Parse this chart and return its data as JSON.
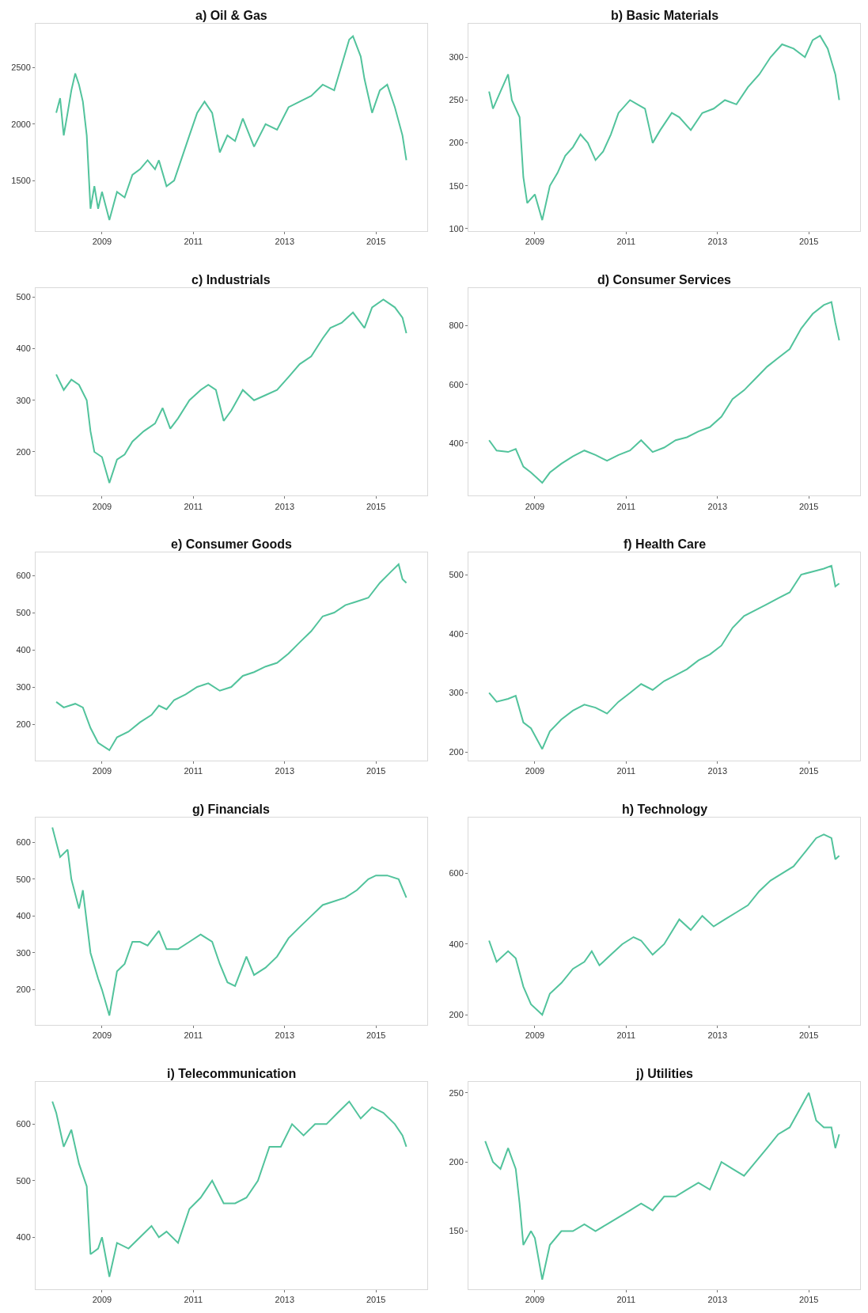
{
  "chart_data": [
    {
      "type": "line",
      "title": "a) Oil & Gas",
      "xlim": [
        "2007-07-20",
        "2016-02-15"
      ],
      "xticks": [
        "2009",
        "2011",
        "2013",
        "2015"
      ],
      "ylim": [
        1050,
        2890
      ],
      "yticks": [
        1500,
        2000,
        2500
      ],
      "series": [
        {
          "color": "#52c39c",
          "x": [
            "2008-01",
            "2008-02",
            "2008-03",
            "2008-04",
            "2008-05",
            "2008-06",
            "2008-07",
            "2008-08",
            "2008-09",
            "2008-10",
            "2008-11",
            "2008-12",
            "2009-01",
            "2009-03",
            "2009-05",
            "2009-07",
            "2009-09",
            "2009-11",
            "2010-01",
            "2010-03",
            "2010-04",
            "2010-06",
            "2010-08",
            "2010-10",
            "2010-12",
            "2011-02",
            "2011-04",
            "2011-06",
            "2011-08",
            "2011-10",
            "2011-12",
            "2012-02",
            "2012-05",
            "2012-08",
            "2012-11",
            "2013-02",
            "2013-05",
            "2013-08",
            "2013-11",
            "2014-02",
            "2014-06",
            "2014-07",
            "2014-09",
            "2014-10",
            "2014-12",
            "2015-02",
            "2015-04",
            "2015-06",
            "2015-08",
            "2015-09"
          ],
          "values": [
            2100,
            2230,
            1900,
            2100,
            2300,
            2450,
            2350,
            2200,
            1900,
            1250,
            1450,
            1250,
            1400,
            1150,
            1400,
            1350,
            1550,
            1600,
            1680,
            1600,
            1680,
            1450,
            1500,
            1700,
            1900,
            2100,
            2200,
            2100,
            1750,
            1900,
            1850,
            2050,
            1800,
            2000,
            1950,
            2150,
            2200,
            2250,
            2350,
            2300,
            2750,
            2780,
            2600,
            2400,
            2100,
            2300,
            2350,
            2150,
            1900,
            1680
          ]
        }
      ]
    },
    {
      "type": "line",
      "title": "b) Basic Materials",
      "xlim": [
        "2007-07-20",
        "2016-02-15"
      ],
      "xticks": [
        "2009",
        "2011",
        "2013",
        "2015"
      ],
      "ylim": [
        97,
        339
      ],
      "yticks": [
        100,
        150,
        200,
        250,
        300
      ],
      "series": [
        {
          "color": "#52c39c",
          "x": [
            "2008-01",
            "2008-02",
            "2008-04",
            "2008-06",
            "2008-07",
            "2008-09",
            "2008-10",
            "2008-11",
            "2009-01",
            "2009-03",
            "2009-05",
            "2009-07",
            "2009-09",
            "2009-11",
            "2010-01",
            "2010-03",
            "2010-05",
            "2010-07",
            "2010-09",
            "2010-11",
            "2011-02",
            "2011-04",
            "2011-06",
            "2011-08",
            "2011-10",
            "2012-01",
            "2012-03",
            "2012-06",
            "2012-09",
            "2012-12",
            "2013-03",
            "2013-06",
            "2013-09",
            "2013-12",
            "2014-03",
            "2014-06",
            "2014-09",
            "2014-12",
            "2015-02",
            "2015-04",
            "2015-06",
            "2015-08",
            "2015-09"
          ],
          "values": [
            260,
            240,
            260,
            280,
            250,
            230,
            160,
            130,
            140,
            110,
            150,
            165,
            185,
            195,
            210,
            200,
            180,
            190,
            210,
            235,
            250,
            245,
            240,
            200,
            215,
            235,
            230,
            215,
            235,
            240,
            250,
            245,
            265,
            280,
            300,
            315,
            310,
            300,
            320,
            325,
            310,
            280,
            250
          ]
        }
      ]
    },
    {
      "type": "line",
      "title": "c) Industrials",
      "xlim": [
        "2007-07-20",
        "2016-02-15"
      ],
      "xticks": [
        "2009",
        "2011",
        "2013",
        "2015"
      ],
      "ylim": [
        115,
        517
      ],
      "yticks": [
        200,
        300,
        400,
        500
      ],
      "series": [
        {
          "color": "#52c39c",
          "x": [
            "2008-01",
            "2008-03",
            "2008-05",
            "2008-07",
            "2008-09",
            "2008-10",
            "2008-11",
            "2009-01",
            "2009-03",
            "2009-05",
            "2009-07",
            "2009-09",
            "2009-12",
            "2010-03",
            "2010-05",
            "2010-07",
            "2010-09",
            "2010-12",
            "2011-03",
            "2011-05",
            "2011-07",
            "2011-09",
            "2011-11",
            "2012-02",
            "2012-05",
            "2012-08",
            "2012-11",
            "2013-02",
            "2013-05",
            "2013-08",
            "2013-11",
            "2014-01",
            "2014-04",
            "2014-07",
            "2014-10",
            "2014-12",
            "2015-03",
            "2015-06",
            "2015-08",
            "2015-09"
          ],
          "values": [
            350,
            320,
            340,
            330,
            300,
            240,
            200,
            190,
            140,
            185,
            195,
            220,
            240,
            255,
            285,
            245,
            265,
            300,
            320,
            330,
            320,
            260,
            280,
            320,
            300,
            310,
            320,
            345,
            370,
            385,
            420,
            440,
            450,
            470,
            440,
            480,
            495,
            480,
            460,
            430
          ]
        }
      ]
    },
    {
      "type": "line",
      "title": "d) Consumer Services",
      "xlim": [
        "2007-07-20",
        "2016-02-15"
      ],
      "xticks": [
        "2009",
        "2011",
        "2013",
        "2015"
      ],
      "ylim": [
        221,
        927
      ],
      "yticks": [
        400,
        600,
        800
      ],
      "series": [
        {
          "color": "#52c39c",
          "x": [
            "2008-01",
            "2008-03",
            "2008-06",
            "2008-08",
            "2008-10",
            "2008-12",
            "2009-03",
            "2009-05",
            "2009-08",
            "2009-11",
            "2010-02",
            "2010-05",
            "2010-08",
            "2010-11",
            "2011-02",
            "2011-05",
            "2011-08",
            "2011-11",
            "2012-02",
            "2012-05",
            "2012-08",
            "2012-11",
            "2013-02",
            "2013-05",
            "2013-08",
            "2013-11",
            "2014-02",
            "2014-05",
            "2014-08",
            "2014-11",
            "2015-02",
            "2015-05",
            "2015-07",
            "2015-08",
            "2015-09"
          ],
          "values": [
            410,
            375,
            370,
            380,
            320,
            300,
            265,
            300,
            330,
            355,
            375,
            360,
            340,
            360,
            375,
            410,
            370,
            385,
            410,
            420,
            440,
            455,
            490,
            550,
            580,
            620,
            660,
            690,
            720,
            790,
            840,
            870,
            880,
            810,
            750
          ]
        }
      ]
    },
    {
      "type": "line",
      "title": "e) Consumer Goods",
      "xlim": [
        "2007-07-20",
        "2016-02-15"
      ],
      "xticks": [
        "2009",
        "2011",
        "2013",
        "2015"
      ],
      "ylim": [
        103,
        661
      ],
      "yticks": [
        200,
        300,
        400,
        500,
        600
      ],
      "series": [
        {
          "color": "#52c39c",
          "x": [
            "2008-01",
            "2008-03",
            "2008-06",
            "2008-08",
            "2008-10",
            "2008-12",
            "2009-03",
            "2009-05",
            "2009-08",
            "2009-11",
            "2010-02",
            "2010-04",
            "2010-06",
            "2010-08",
            "2010-11",
            "2011-02",
            "2011-05",
            "2011-08",
            "2011-11",
            "2012-02",
            "2012-05",
            "2012-08",
            "2012-11",
            "2013-02",
            "2013-05",
            "2013-08",
            "2013-11",
            "2014-02",
            "2014-05",
            "2014-08",
            "2014-11",
            "2015-02",
            "2015-05",
            "2015-07",
            "2015-08",
            "2015-09"
          ],
          "values": [
            260,
            245,
            255,
            245,
            190,
            150,
            130,
            165,
            180,
            205,
            225,
            250,
            240,
            265,
            280,
            300,
            310,
            290,
            300,
            330,
            340,
            355,
            365,
            390,
            420,
            450,
            490,
            500,
            520,
            530,
            540,
            580,
            610,
            630,
            590,
            580
          ]
        }
      ]
    },
    {
      "type": "line",
      "title": "f) Health Care",
      "xlim": [
        "2007-07-20",
        "2016-02-15"
      ],
      "xticks": [
        "2009",
        "2011",
        "2013",
        "2015"
      ],
      "ylim": [
        186,
        537
      ],
      "yticks": [
        200,
        300,
        400,
        500
      ],
      "series": [
        {
          "color": "#52c39c",
          "x": [
            "2008-01",
            "2008-03",
            "2008-06",
            "2008-08",
            "2008-10",
            "2008-12",
            "2009-03",
            "2009-05",
            "2009-08",
            "2009-11",
            "2010-02",
            "2010-05",
            "2010-08",
            "2010-11",
            "2011-02",
            "2011-05",
            "2011-08",
            "2011-11",
            "2012-02",
            "2012-05",
            "2012-08",
            "2012-11",
            "2013-02",
            "2013-05",
            "2013-08",
            "2013-11",
            "2014-02",
            "2014-05",
            "2014-08",
            "2014-11",
            "2015-02",
            "2015-05",
            "2015-07",
            "2015-08",
            "2015-09"
          ],
          "values": [
            300,
            285,
            290,
            295,
            250,
            240,
            205,
            235,
            255,
            270,
            280,
            275,
            265,
            285,
            300,
            315,
            305,
            320,
            330,
            340,
            355,
            365,
            380,
            410,
            430,
            440,
            450,
            460,
            470,
            500,
            505,
            510,
            515,
            480,
            485
          ]
        }
      ]
    },
    {
      "type": "line",
      "title": "g) Financials",
      "xlim": [
        "2007-07-20",
        "2016-02-15"
      ],
      "xticks": [
        "2009",
        "2011",
        "2013",
        "2015"
      ],
      "ylim": [
        105,
        668
      ],
      "yticks": [
        200,
        300,
        400,
        500,
        600
      ],
      "series": [
        {
          "color": "#52c39c",
          "x": [
            "2007-12",
            "2008-01",
            "2008-02",
            "2008-04",
            "2008-05",
            "2008-07",
            "2008-08",
            "2008-10",
            "2008-12",
            "2009-01",
            "2009-03",
            "2009-05",
            "2009-07",
            "2009-09",
            "2009-11",
            "2010-01",
            "2010-04",
            "2010-06",
            "2010-09",
            "2010-12",
            "2011-03",
            "2011-06",
            "2011-08",
            "2011-10",
            "2011-12",
            "2012-03",
            "2012-05",
            "2012-08",
            "2012-11",
            "2013-02",
            "2013-05",
            "2013-08",
            "2013-11",
            "2014-02",
            "2014-05",
            "2014-08",
            "2014-11",
            "2015-01",
            "2015-04",
            "2015-07",
            "2015-09"
          ],
          "values": [
            640,
            600,
            560,
            580,
            500,
            420,
            470,
            300,
            230,
            200,
            130,
            250,
            270,
            330,
            330,
            320,
            360,
            310,
            310,
            330,
            350,
            330,
            270,
            220,
            210,
            290,
            240,
            260,
            290,
            340,
            370,
            400,
            430,
            440,
            450,
            470,
            500,
            510,
            510,
            500,
            450
          ]
        }
      ]
    },
    {
      "type": "line",
      "title": "h) Technology",
      "xlim": [
        "2007-07-20",
        "2016-02-15"
      ],
      "xticks": [
        "2009",
        "2011",
        "2013",
        "2015"
      ],
      "ylim": [
        172,
        759
      ],
      "yticks": [
        200,
        400,
        600
      ],
      "series": [
        {
          "color": "#52c39c",
          "x": [
            "2008-01",
            "2008-03",
            "2008-06",
            "2008-08",
            "2008-10",
            "2008-12",
            "2009-03",
            "2009-05",
            "2009-08",
            "2009-11",
            "2010-02",
            "2010-04",
            "2010-06",
            "2010-09",
            "2010-12",
            "2011-03",
            "2011-05",
            "2011-08",
            "2011-11",
            "2012-03",
            "2012-06",
            "2012-09",
            "2012-12",
            "2013-03",
            "2013-06",
            "2013-09",
            "2013-12",
            "2014-03",
            "2014-06",
            "2014-09",
            "2014-12",
            "2015-03",
            "2015-05",
            "2015-07",
            "2015-08",
            "2015-09"
          ],
          "values": [
            410,
            350,
            380,
            360,
            280,
            230,
            200,
            260,
            290,
            330,
            350,
            380,
            340,
            370,
            400,
            420,
            410,
            370,
            400,
            470,
            440,
            480,
            450,
            470,
            490,
            510,
            550,
            580,
            600,
            620,
            660,
            700,
            710,
            700,
            640,
            650
          ]
        }
      ]
    },
    {
      "type": "line",
      "title": "i) Telecommunication",
      "xlim": [
        "2007-07-20",
        "2016-02-15"
      ],
      "xticks": [
        "2009",
        "2011",
        "2013",
        "2015"
      ],
      "ylim": [
        308,
        675
      ],
      "yticks": [
        400,
        500,
        600
      ],
      "series": [
        {
          "color": "#52c39c",
          "x": [
            "2007-12",
            "2008-01",
            "2008-03",
            "2008-05",
            "2008-07",
            "2008-09",
            "2008-10",
            "2008-12",
            "2009-01",
            "2009-03",
            "2009-05",
            "2009-08",
            "2009-11",
            "2010-02",
            "2010-04",
            "2010-06",
            "2010-09",
            "2010-12",
            "2011-03",
            "2011-06",
            "2011-09",
            "2011-12",
            "2012-03",
            "2012-06",
            "2012-09",
            "2012-12",
            "2013-03",
            "2013-06",
            "2013-09",
            "2013-12",
            "2014-03",
            "2014-06",
            "2014-09",
            "2014-12",
            "2015-03",
            "2015-06",
            "2015-08",
            "2015-09"
          ],
          "values": [
            640,
            620,
            560,
            590,
            530,
            490,
            370,
            380,
            400,
            330,
            390,
            380,
            400,
            420,
            400,
            410,
            390,
            450,
            470,
            500,
            460,
            460,
            470,
            500,
            560,
            560,
            600,
            580,
            600,
            600,
            620,
            640,
            610,
            630,
            620,
            600,
            580,
            560
          ]
        }
      ]
    },
    {
      "type": "line",
      "title": "j) Utilities",
      "xlim": [
        "2007-07-20",
        "2016-02-15"
      ],
      "xticks": [
        "2009",
        "2011",
        "2013",
        "2015"
      ],
      "ylim": [
        108,
        258
      ],
      "yticks": [
        150,
        200,
        250
      ],
      "series": [
        {
          "color": "#52c39c",
          "x": [
            "2007-12",
            "2008-02",
            "2008-04",
            "2008-06",
            "2008-08",
            "2008-09",
            "2008-10",
            "2008-12",
            "2009-01",
            "2009-03",
            "2009-05",
            "2009-08",
            "2009-11",
            "2010-02",
            "2010-05",
            "2010-08",
            "2010-11",
            "2011-02",
            "2011-05",
            "2011-08",
            "2011-11",
            "2012-02",
            "2012-05",
            "2012-08",
            "2012-11",
            "2013-02",
            "2013-05",
            "2013-08",
            "2013-11",
            "2014-02",
            "2014-05",
            "2014-08",
            "2014-11",
            "2015-01",
            "2015-03",
            "2015-05",
            "2015-07",
            "2015-08",
            "2015-09"
          ],
          "values": [
            215,
            200,
            195,
            210,
            195,
            170,
            140,
            150,
            145,
            115,
            140,
            150,
            150,
            155,
            150,
            155,
            160,
            165,
            170,
            165,
            175,
            175,
            180,
            185,
            180,
            200,
            195,
            190,
            200,
            210,
            220,
            225,
            240,
            250,
            230,
            225,
            225,
            210,
            220
          ]
        }
      ]
    }
  ]
}
